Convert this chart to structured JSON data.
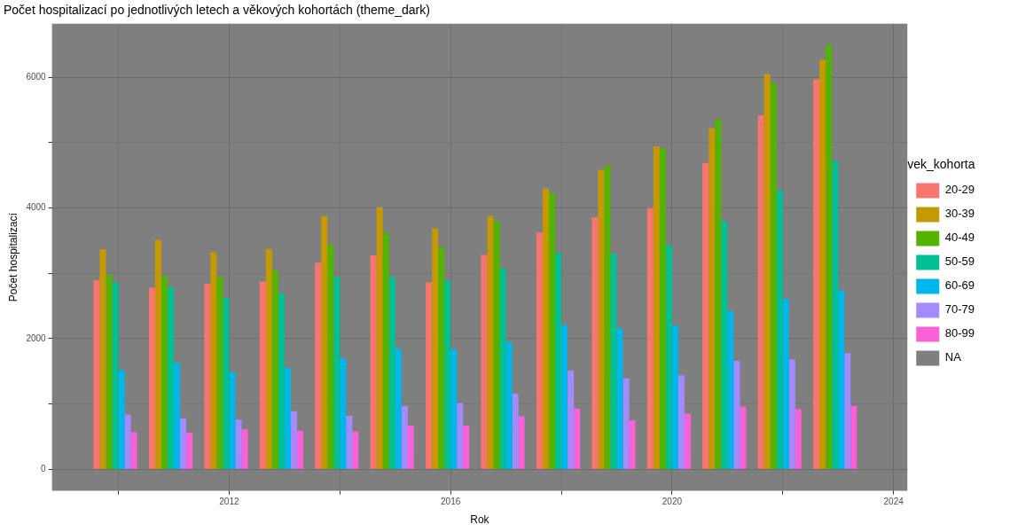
{
  "chart_data": {
    "type": "bar",
    "title": "Počet hospitalizací po jednotlivých letech a věkových kohortách (theme_dark)",
    "xlabel": "Rok",
    "ylabel": "Počet hospitalizací",
    "legend_title": "vek_kohorta",
    "legend": "right",
    "grid": true,
    "x": [
      2010,
      2011,
      2012,
      2013,
      2014,
      2015,
      2016,
      2017,
      2018,
      2019,
      2020,
      2021,
      2022,
      2023
    ],
    "xlim": [
      2008.8,
      2024.25
    ],
    "xticks": [
      {
        "value": 2010,
        "label": null
      },
      2012,
      {
        "value": 2014,
        "label": null
      },
      2016,
      {
        "value": 2018,
        "label": null
      },
      2020,
      {
        "value": 2022,
        "label": null
      },
      2024
    ],
    "ylim": [
      -330,
      6820
    ],
    "yticks": [
      0,
      {
        "value": 1000,
        "label": null
      },
      2000,
      {
        "value": 3000,
        "label": null
      },
      4000,
      {
        "value": 5000,
        "label": null
      },
      6000
    ],
    "series": [
      {
        "name": "20-29",
        "color": "#f8766d",
        "values": [
          2890,
          2780,
          2840,
          2870,
          3160,
          3270,
          2860,
          3280,
          3620,
          3860,
          4000,
          4690,
          5420,
          5970
        ]
      },
      {
        "name": "30-39",
        "color": "#c49a00",
        "values": [
          3370,
          3510,
          3320,
          3370,
          3880,
          4010,
          3690,
          3880,
          4300,
          4580,
          4940,
          5220,
          6050,
          6270
        ]
      },
      {
        "name": "40-49",
        "color": "#53b400",
        "values": [
          2980,
          2960,
          2950,
          3050,
          3440,
          3620,
          3400,
          3800,
          4230,
          4650,
          4910,
          5350,
          5910,
          6500
        ]
      },
      {
        "name": "50-59",
        "color": "#00c094",
        "values": [
          2860,
          2790,
          2620,
          2690,
          2950,
          2940,
          2890,
          3070,
          3310,
          3300,
          3430,
          3800,
          4270,
          4720
        ]
      },
      {
        "name": "60-69",
        "color": "#00b6eb",
        "values": [
          1520,
          1630,
          1490,
          1550,
          1700,
          1850,
          1840,
          1950,
          2210,
          2160,
          2200,
          2420,
          2610,
          2740
        ]
      },
      {
        "name": "70-79",
        "color": "#a58aff",
        "values": [
          840,
          780,
          760,
          890,
          820,
          970,
          1010,
          1160,
          1510,
          1390,
          1440,
          1660,
          1680,
          1780
        ]
      },
      {
        "name": "80-99",
        "color": "#fb61d7",
        "values": [
          570,
          560,
          610,
          590,
          580,
          670,
          670,
          810,
          930,
          750,
          850,
          960,
          920,
          970
        ]
      },
      {
        "name": "NA",
        "color": "#7f7f7f",
        "values": [
          null,
          null,
          null,
          null,
          null,
          null,
          null,
          null,
          null,
          null,
          null,
          null,
          null,
          null
        ]
      }
    ]
  }
}
